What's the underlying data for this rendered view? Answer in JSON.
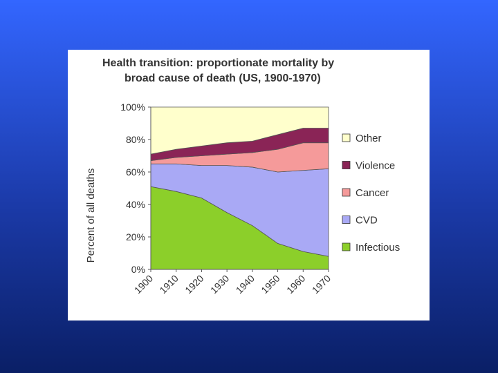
{
  "colors": {
    "background_top": "#3366ff",
    "background_bottom": "#0a1f66",
    "card": "#ffffff",
    "plot_bg": "#ececec"
  },
  "chart_data": {
    "type": "area",
    "stacked": true,
    "title": [
      "Health transition: proportionate mortality by",
      "broad cause of death (US, 1900-1970)"
    ],
    "xlabel": "",
    "ylabel": "Percent of all deaths",
    "x": [
      "1900",
      "1910",
      "1920",
      "1930",
      "1940",
      "1950",
      "1960",
      "1970"
    ],
    "yticks": [
      "0%",
      "20%",
      "40%",
      "60%",
      "80%",
      "100%"
    ],
    "ylim": [
      0,
      100
    ],
    "legend_position": "right",
    "series": [
      {
        "name": "Infectious",
        "color": "#8ccf2a",
        "values": [
          51,
          48,
          44,
          35,
          27,
          16,
          11,
          8
        ]
      },
      {
        "name": "CVD",
        "color": "#a9a9f5",
        "values": [
          14,
          17,
          20,
          29,
          36,
          44,
          50,
          54
        ]
      },
      {
        "name": "Cancer",
        "color": "#f59a9a",
        "values": [
          2,
          4,
          6,
          7,
          9,
          14,
          17,
          16
        ]
      },
      {
        "name": "Violence",
        "color": "#8a2456",
        "values": [
          4,
          5,
          6,
          7,
          7,
          9,
          9,
          9
        ]
      },
      {
        "name": "Other",
        "color": "#ffffcc",
        "values": [
          29,
          26,
          24,
          22,
          21,
          17,
          13,
          13
        ]
      }
    ]
  }
}
